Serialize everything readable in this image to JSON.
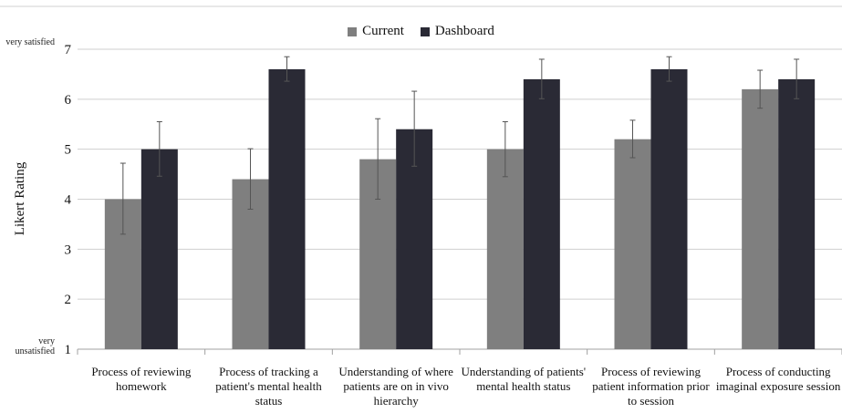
{
  "chart_data": {
    "type": "bar",
    "title": "",
    "xlabel": "",
    "ylabel": "Likert Rating",
    "ylim": [
      1,
      7
    ],
    "yticks": [
      1,
      2,
      3,
      4,
      5,
      6,
      7
    ],
    "y_top_label": "very satisfied",
    "y_bottom_label": "very unsatisfied",
    "grid": true,
    "legend_position": "top-center",
    "categories": [
      "Process of reviewing homework",
      "Process of tracking a patient's mental health status",
      "Understanding of where patients are on in vivo hierarchy",
      "Understanding of patients' mental health status",
      "Process of reviewing patient information prior to session",
      "Process of conducting imaginal exposure session"
    ],
    "series": [
      {
        "name": "Current",
        "color": "#7f7f7f",
        "values": [
          4.0,
          4.4,
          4.8,
          5.0,
          5.2,
          6.2
        ],
        "err_low": [
          3.3,
          3.8,
          4.0,
          4.45,
          4.83,
          5.82
        ],
        "err_high": [
          4.72,
          5.01,
          5.61,
          5.55,
          5.58,
          6.58
        ]
      },
      {
        "name": "Dashboard",
        "color": "#2a2a35",
        "values": [
          5.0,
          6.6,
          5.4,
          6.4,
          6.6,
          6.4
        ],
        "err_low": [
          4.46,
          6.36,
          4.66,
          6.01,
          6.36,
          6.01
        ],
        "err_high": [
          5.55,
          6.85,
          6.16,
          6.8,
          6.85,
          6.8
        ]
      }
    ]
  }
}
